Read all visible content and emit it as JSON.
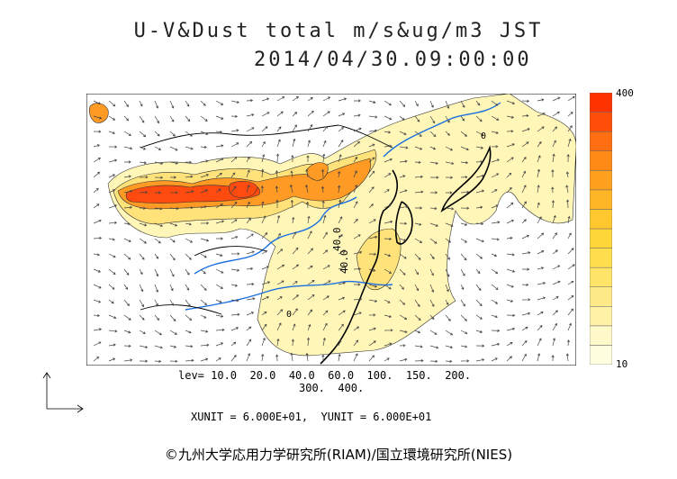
{
  "header": {
    "title": "U-V&Dust total m/s&ug/m3 JST",
    "datetime": "2014/04/30.09:00:00"
  },
  "colorbar": {
    "max_label": "400",
    "min_label": "10",
    "colors": [
      "#ffffe0",
      "#fff8c8",
      "#fff1a6",
      "#ffea88",
      "#ffe46a",
      "#ffde4e",
      "#ffd638",
      "#ffc82e",
      "#ffb626",
      "#ffa01e",
      "#ff8a16",
      "#ff6e10",
      "#ff4e08",
      "#ff3300"
    ]
  },
  "legend": {
    "levels_line1": "lev= 10.0  20.0  40.0  60.0  100.  150.  200.",
    "levels_line2": "300.  400."
  },
  "units": {
    "text": "XUNIT = 6.000E+01,  YUNIT = 6.000E+01"
  },
  "map": {
    "contour_labels": [
      "40.0",
      "40.0",
      "0",
      "0"
    ],
    "palette": {
      "border": "#000000",
      "river": "#1a6fe0",
      "vector": "#444444",
      "dust_light": "#fff6b8",
      "dust_mid": "#ffe27a",
      "dust_orange": "#ff9a24",
      "dust_red": "#ff4a10"
    }
  },
  "footer": {
    "copyright": "©九州大学応用力学研究所(RIAM)/国立環境研究所(NIES)"
  }
}
